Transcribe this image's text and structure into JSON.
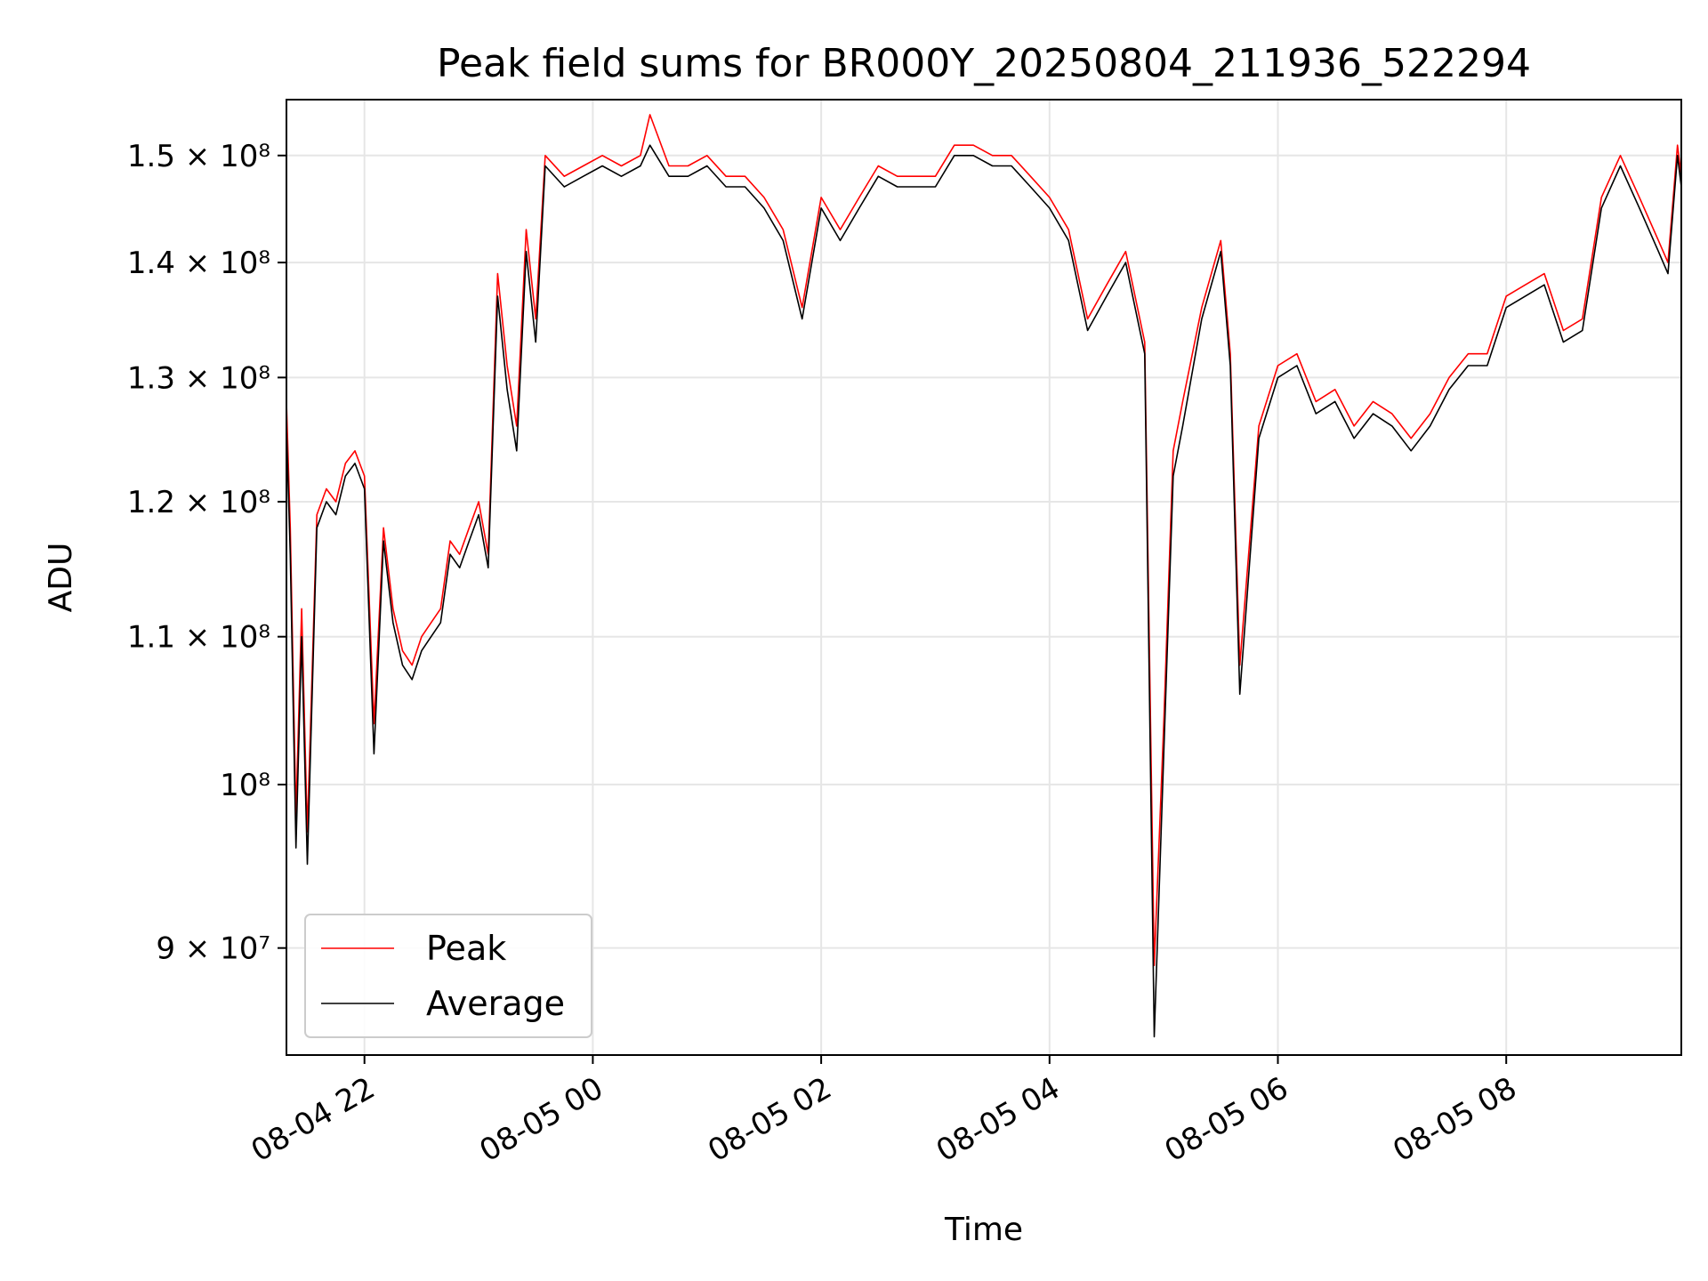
{
  "chart_data": {
    "type": "line",
    "title": "Peak field sums for BR000Y_20250804_211936_522294",
    "xlabel": "Time",
    "ylabel": "ADU",
    "yscale": "log",
    "grid": true,
    "legend_position": "lower-left",
    "xlim": [
      "2025-08-04 21:19",
      "2025-08-05 09:32"
    ],
    "ylim": [
      84000000,
      155500000
    ],
    "x_ticks": [
      {
        "label": "08-04 22",
        "value": "2025-08-04 22:00"
      },
      {
        "label": "08-05 00",
        "value": "2025-08-05 00:00"
      },
      {
        "label": "08-05 02",
        "value": "2025-08-05 02:00"
      },
      {
        "label": "08-05 04",
        "value": "2025-08-05 04:00"
      },
      {
        "label": "08-05 06",
        "value": "2025-08-05 06:00"
      },
      {
        "label": "08-05 08",
        "value": "2025-08-05 08:00"
      }
    ],
    "y_ticks": [
      {
        "label": "1.5 × 10⁸",
        "value": 150000000
      },
      {
        "label": "1.4 × 10⁸",
        "value": 140000000
      },
      {
        "label": "1.3 × 10⁸",
        "value": 130000000
      },
      {
        "label": "1.2 × 10⁸",
        "value": 120000000
      },
      {
        "label": "1.1 × 10⁸",
        "value": 110000000
      },
      {
        "label": "10⁸",
        "value": 100000000
      },
      {
        "label": "9 × 10⁷",
        "value": 90000000
      }
    ],
    "series": [
      {
        "name": "Peak",
        "color": "#ff0000",
        "x": [
          "2025-08-04 21:19",
          "2025-08-04 21:21",
          "2025-08-04 21:24",
          "2025-08-04 21:27",
          "2025-08-04 21:30",
          "2025-08-04 21:35",
          "2025-08-04 21:40",
          "2025-08-04 21:45",
          "2025-08-04 21:50",
          "2025-08-04 21:55",
          "2025-08-04 22:00",
          "2025-08-04 22:05",
          "2025-08-04 22:10",
          "2025-08-04 22:15",
          "2025-08-04 22:20",
          "2025-08-04 22:25",
          "2025-08-04 22:30",
          "2025-08-04 22:35",
          "2025-08-04 22:40",
          "2025-08-04 22:45",
          "2025-08-04 22:50",
          "2025-08-04 22:55",
          "2025-08-04 23:00",
          "2025-08-04 23:05",
          "2025-08-04 23:10",
          "2025-08-04 23:15",
          "2025-08-04 23:20",
          "2025-08-04 23:25",
          "2025-08-04 23:30",
          "2025-08-04 23:35",
          "2025-08-04 23:45",
          "2025-08-04 23:55",
          "2025-08-05 00:05",
          "2025-08-05 00:15",
          "2025-08-05 00:25",
          "2025-08-05 00:30",
          "2025-08-05 00:40",
          "2025-08-05 00:50",
          "2025-08-05 01:00",
          "2025-08-05 01:10",
          "2025-08-05 01:20",
          "2025-08-05 01:30",
          "2025-08-05 01:40",
          "2025-08-05 01:50",
          "2025-08-05 02:00",
          "2025-08-05 02:10",
          "2025-08-05 02:20",
          "2025-08-05 02:30",
          "2025-08-05 02:40",
          "2025-08-05 02:50",
          "2025-08-05 03:00",
          "2025-08-05 03:10",
          "2025-08-05 03:20",
          "2025-08-05 03:30",
          "2025-08-05 03:40",
          "2025-08-05 03:50",
          "2025-08-05 04:00",
          "2025-08-05 04:10",
          "2025-08-05 04:20",
          "2025-08-05 04:30",
          "2025-08-05 04:40",
          "2025-08-05 04:50",
          "2025-08-05 04:55",
          "2025-08-05 05:00",
          "2025-08-05 05:05",
          "2025-08-05 05:10",
          "2025-08-05 05:20",
          "2025-08-05 05:30",
          "2025-08-05 05:35",
          "2025-08-05 05:40",
          "2025-08-05 05:50",
          "2025-08-05 06:00",
          "2025-08-05 06:10",
          "2025-08-05 06:20",
          "2025-08-05 06:30",
          "2025-08-05 06:40",
          "2025-08-05 06:50",
          "2025-08-05 07:00",
          "2025-08-05 07:10",
          "2025-08-05 07:20",
          "2025-08-05 07:30",
          "2025-08-05 07:40",
          "2025-08-05 07:50",
          "2025-08-05 08:00",
          "2025-08-05 08:10",
          "2025-08-05 08:20",
          "2025-08-05 08:30",
          "2025-08-05 08:40",
          "2025-08-05 08:50",
          "2025-08-05 09:00",
          "2025-08-05 09:10",
          "2025-08-05 09:20",
          "2025-08-05 09:25",
          "2025-08-05 09:30",
          "2025-08-05 09:32"
        ],
        "values": [
          128000000,
          118000000,
          98000000,
          112000000,
          97000000,
          119000000,
          121000000,
          120000000,
          123000000,
          124000000,
          122000000,
          104000000,
          118000000,
          112000000,
          109000000,
          108000000,
          110000000,
          111000000,
          112000000,
          117000000,
          116000000,
          118000000,
          120000000,
          116000000,
          139000000,
          131000000,
          126000000,
          143000000,
          135000000,
          150000000,
          148000000,
          149000000,
          150000000,
          149000000,
          150000000,
          154000000,
          149000000,
          149000000,
          150000000,
          148000000,
          148000000,
          146000000,
          143000000,
          136000000,
          146000000,
          143000000,
          146000000,
          149000000,
          148000000,
          148000000,
          148000000,
          151000000,
          151000000,
          150000000,
          150000000,
          148000000,
          146000000,
          143000000,
          135000000,
          138000000,
          141000000,
          133000000,
          89000000,
          104000000,
          124000000,
          128000000,
          136000000,
          142000000,
          132000000,
          108000000,
          126000000,
          131000000,
          132000000,
          128000000,
          129000000,
          126000000,
          128000000,
          127000000,
          125000000,
          127000000,
          130000000,
          132000000,
          132000000,
          137000000,
          138000000,
          139000000,
          134000000,
          135000000,
          146000000,
          150000000,
          146000000,
          142000000,
          140000000,
          151000000,
          148000000
        ]
      },
      {
        "name": "Average",
        "color": "#000000",
        "x": [
          "2025-08-04 21:19",
          "2025-08-04 21:21",
          "2025-08-04 21:24",
          "2025-08-04 21:27",
          "2025-08-04 21:30",
          "2025-08-04 21:35",
          "2025-08-04 21:40",
          "2025-08-04 21:45",
          "2025-08-04 21:50",
          "2025-08-04 21:55",
          "2025-08-04 22:00",
          "2025-08-04 22:05",
          "2025-08-04 22:10",
          "2025-08-04 22:15",
          "2025-08-04 22:20",
          "2025-08-04 22:25",
          "2025-08-04 22:30",
          "2025-08-04 22:35",
          "2025-08-04 22:40",
          "2025-08-04 22:45",
          "2025-08-04 22:50",
          "2025-08-04 22:55",
          "2025-08-04 23:00",
          "2025-08-04 23:05",
          "2025-08-04 23:10",
          "2025-08-04 23:15",
          "2025-08-04 23:20",
          "2025-08-04 23:25",
          "2025-08-04 23:30",
          "2025-08-04 23:35",
          "2025-08-04 23:45",
          "2025-08-04 23:55",
          "2025-08-05 00:05",
          "2025-08-05 00:15",
          "2025-08-05 00:25",
          "2025-08-05 00:30",
          "2025-08-05 00:40",
          "2025-08-05 00:50",
          "2025-08-05 01:00",
          "2025-08-05 01:10",
          "2025-08-05 01:20",
          "2025-08-05 01:30",
          "2025-08-05 01:40",
          "2025-08-05 01:50",
          "2025-08-05 02:00",
          "2025-08-05 02:10",
          "2025-08-05 02:20",
          "2025-08-05 02:30",
          "2025-08-05 02:40",
          "2025-08-05 02:50",
          "2025-08-05 03:00",
          "2025-08-05 03:10",
          "2025-08-05 03:20",
          "2025-08-05 03:30",
          "2025-08-05 03:40",
          "2025-08-05 03:50",
          "2025-08-05 04:00",
          "2025-08-05 04:10",
          "2025-08-05 04:20",
          "2025-08-05 04:30",
          "2025-08-05 04:40",
          "2025-08-05 04:50",
          "2025-08-05 04:55",
          "2025-08-05 05:00",
          "2025-08-05 05:05",
          "2025-08-05 05:10",
          "2025-08-05 05:20",
          "2025-08-05 05:30",
          "2025-08-05 05:35",
          "2025-08-05 05:40",
          "2025-08-05 05:50",
          "2025-08-05 06:00",
          "2025-08-05 06:10",
          "2025-08-05 06:20",
          "2025-08-05 06:30",
          "2025-08-05 06:40",
          "2025-08-05 06:50",
          "2025-08-05 07:00",
          "2025-08-05 07:10",
          "2025-08-05 07:20",
          "2025-08-05 07:30",
          "2025-08-05 07:40",
          "2025-08-05 07:50",
          "2025-08-05 08:00",
          "2025-08-05 08:10",
          "2025-08-05 08:20",
          "2025-08-05 08:30",
          "2025-08-05 08:40",
          "2025-08-05 08:50",
          "2025-08-05 09:00",
          "2025-08-05 09:10",
          "2025-08-05 09:20",
          "2025-08-05 09:25",
          "2025-08-05 09:30",
          "2025-08-05 09:32"
        ],
        "values": [
          126000000,
          116000000,
          96000000,
          110000000,
          95000000,
          118000000,
          120000000,
          119000000,
          122000000,
          123000000,
          121000000,
          102000000,
          117000000,
          111000000,
          108000000,
          107000000,
          109000000,
          110000000,
          111000000,
          116000000,
          115000000,
          117000000,
          119000000,
          115000000,
          137000000,
          129000000,
          124000000,
          141000000,
          133000000,
          149000000,
          147000000,
          148000000,
          149000000,
          148000000,
          149000000,
          151000000,
          148000000,
          148000000,
          149000000,
          147000000,
          147000000,
          145000000,
          142000000,
          135000000,
          145000000,
          142000000,
          145000000,
          148000000,
          147000000,
          147000000,
          147000000,
          150000000,
          150000000,
          149000000,
          149000000,
          147000000,
          145000000,
          142000000,
          134000000,
          137000000,
          140000000,
          132000000,
          85000000,
          102000000,
          122000000,
          126000000,
          135000000,
          141000000,
          131000000,
          106000000,
          125000000,
          130000000,
          131000000,
          127000000,
          128000000,
          125000000,
          127000000,
          126000000,
          124000000,
          126000000,
          129000000,
          131000000,
          131000000,
          136000000,
          137000000,
          138000000,
          133000000,
          134000000,
          145000000,
          149000000,
          145000000,
          141000000,
          139000000,
          150000000,
          147000000
        ]
      }
    ]
  }
}
